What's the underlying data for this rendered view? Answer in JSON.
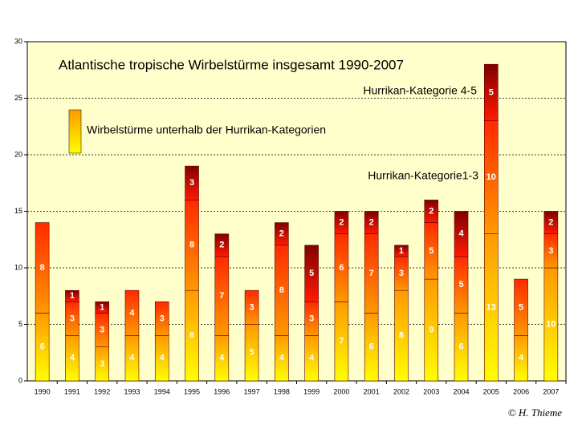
{
  "chart_data": {
    "type": "stacked-bar",
    "title": "Atlantische tropische Wirbelstürme insgesamt 1990-2007",
    "credit": "© H. Thieme",
    "categories": [
      "1990",
      "1991",
      "1992",
      "1993",
      "1994",
      "1995",
      "1996",
      "1997",
      "1998",
      "1999",
      "2000",
      "2001",
      "2002",
      "2003",
      "2004",
      "2005",
      "2006",
      "2007"
    ],
    "series": [
      {
        "name": "Wirbelstürme unterhalb der Hurrikan-Kategorien",
        "gradient": [
          "#ffff00",
          "#ff9900"
        ],
        "values": [
          6,
          4,
          3,
          4,
          4,
          8,
          4,
          5,
          4,
          4,
          7,
          6,
          8,
          9,
          6,
          13,
          4,
          10
        ]
      },
      {
        "name": "Hurrikan-Kategorie1-3",
        "gradient": [
          "#ff9900",
          "#ff2a00"
        ],
        "values": [
          8,
          3,
          3,
          4,
          3,
          8,
          7,
          3,
          8,
          3,
          6,
          7,
          3,
          5,
          5,
          10,
          5,
          3
        ]
      },
      {
        "name": "Hurrikan-Kategorie 4-5",
        "gradient": [
          "#ff1a00",
          "#800000"
        ],
        "values": [
          null,
          1,
          1,
          null,
          null,
          3,
          2,
          null,
          2,
          5,
          2,
          2,
          1,
          2,
          4,
          5,
          null,
          2
        ]
      }
    ],
    "ylim": [
      0,
      30
    ],
    "yticks": [
      0,
      5,
      10,
      15,
      20,
      25,
      30
    ],
    "grid": true,
    "background": "#ffffcc"
  }
}
